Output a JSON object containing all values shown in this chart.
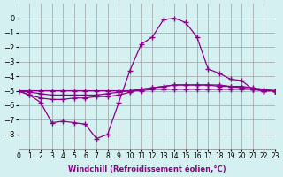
{
  "xlabel": "Windchill (Refroidissement éolien,°C)",
  "hours": [
    0,
    1,
    2,
    3,
    4,
    5,
    6,
    7,
    8,
    9,
    10,
    11,
    12,
    13,
    14,
    15,
    16,
    17,
    18,
    19,
    20,
    21,
    22,
    23
  ],
  "line1": [
    -5.0,
    -5.3,
    -5.8,
    -7.2,
    -7.1,
    -7.2,
    -7.3,
    -8.3,
    -8.0,
    -5.8,
    -3.6,
    -1.8,
    -1.3,
    -0.1,
    0.0,
    -0.3,
    -1.3,
    -3.5,
    -3.8,
    -4.2,
    -4.3,
    -4.9,
    -5.0,
    -5.0
  ],
  "line2": [
    -5.0,
    -5.3,
    -5.5,
    -5.6,
    -5.6,
    -5.5,
    -5.5,
    -5.4,
    -5.4,
    -5.3,
    -5.1,
    -4.9,
    -4.8,
    -4.7,
    -4.6,
    -4.6,
    -4.6,
    -4.6,
    -4.7,
    -4.7,
    -4.8,
    -4.9,
    -5.0,
    -5.0
  ],
  "line3": [
    -5.0,
    -5.1,
    -5.2,
    -5.3,
    -5.3,
    -5.3,
    -5.3,
    -5.3,
    -5.2,
    -5.1,
    -5.0,
    -4.9,
    -4.8,
    -4.7,
    -4.6,
    -4.6,
    -4.6,
    -4.6,
    -4.6,
    -4.7,
    -4.7,
    -4.8,
    -4.9,
    -5.0
  ],
  "line4": [
    -5.0,
    -5.0,
    -5.0,
    -5.0,
    -5.0,
    -5.0,
    -5.0,
    -5.0,
    -5.0,
    -5.0,
    -5.0,
    -5.0,
    -4.9,
    -4.9,
    -4.9,
    -4.9,
    -4.9,
    -4.9,
    -4.9,
    -4.9,
    -4.9,
    -4.9,
    -5.0,
    -5.0
  ],
  "line_color": "#8B008B",
  "bg_color": "#d4f0f0",
  "grid_color": "#a0a0a0",
  "ylim": [
    -9,
    1
  ],
  "xlim": [
    0,
    23
  ],
  "yticks": [
    0,
    -1,
    -2,
    -3,
    -4,
    -5,
    -6,
    -7,
    -8
  ],
  "xtick_labels": [
    "0",
    "1",
    "2",
    "3",
    "4",
    "5",
    "6",
    "7",
    "8",
    "9",
    "10",
    "11",
    "12",
    "13",
    "14",
    "15",
    "16",
    "17",
    "18",
    "19",
    "20",
    "21",
    "22",
    "23"
  ]
}
